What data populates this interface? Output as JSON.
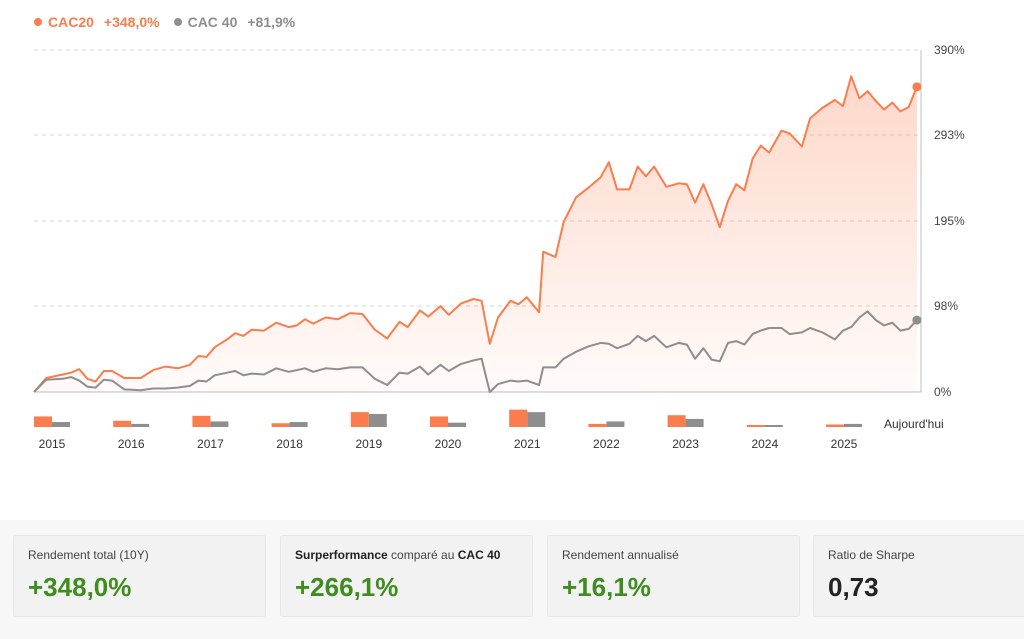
{
  "legend": [
    {
      "name": "CAC20",
      "value": "+348,0%",
      "color": "#fb7c4d"
    },
    {
      "name": "CAC 40",
      "value": "+81,9%",
      "color": "#8e8e8e"
    }
  ],
  "today_label": "Aujourd'hui",
  "stats": [
    {
      "label": "Rendement total (10Y)",
      "value": "+348,0%"
    },
    {
      "label_pre": "Surperformance",
      "label_mid": " comparé au ",
      "label_post": "CAC 40",
      "value": "+266,1%"
    },
    {
      "label": "Rendement annualisé",
      "value": "+16,1%"
    },
    {
      "label": "Ratio de Sharpe",
      "value": "0,73"
    }
  ],
  "chart_data": {
    "type": "line",
    "ylim": [
      0,
      390
    ],
    "y_ticks": [
      {
        "value": 0,
        "label": "0%"
      },
      {
        "value": 98,
        "label": "98%"
      },
      {
        "value": 195,
        "label": "195%"
      },
      {
        "value": 293,
        "label": "293%"
      },
      {
        "value": 390,
        "label": "390%"
      }
    ],
    "x_range": [
      2015,
      2025.8
    ],
    "x_tick_labels": [
      "2015",
      "2016",
      "2017",
      "2018",
      "2019",
      "2020",
      "2021",
      "2022",
      "2023",
      "2024",
      "2025"
    ],
    "grid": true,
    "series": [
      {
        "name": "CAC20",
        "color": "#fb7c4d",
        "end_value": 348,
        "points": [
          [
            2015.0,
            0
          ],
          [
            2015.15,
            16
          ],
          [
            2015.35,
            20
          ],
          [
            2015.45,
            22
          ],
          [
            2015.55,
            26
          ],
          [
            2015.65,
            15
          ],
          [
            2015.75,
            12
          ],
          [
            2015.85,
            24
          ],
          [
            2015.95,
            24
          ],
          [
            2016.1,
            16
          ],
          [
            2016.3,
            16
          ],
          [
            2016.45,
            25
          ],
          [
            2016.6,
            29
          ],
          [
            2016.75,
            27
          ],
          [
            2016.9,
            31
          ],
          [
            2017.0,
            41
          ],
          [
            2017.1,
            40
          ],
          [
            2017.2,
            51
          ],
          [
            2017.35,
            60
          ],
          [
            2017.45,
            67
          ],
          [
            2017.55,
            64
          ],
          [
            2017.65,
            71
          ],
          [
            2017.8,
            70
          ],
          [
            2017.95,
            79
          ],
          [
            2018.1,
            74
          ],
          [
            2018.2,
            76
          ],
          [
            2018.3,
            83
          ],
          [
            2018.4,
            78
          ],
          [
            2018.55,
            85
          ],
          [
            2018.7,
            83
          ],
          [
            2018.85,
            90
          ],
          [
            2019.0,
            89
          ],
          [
            2019.15,
            71
          ],
          [
            2019.3,
            61
          ],
          [
            2019.45,
            80
          ],
          [
            2019.55,
            74
          ],
          [
            2019.7,
            93
          ],
          [
            2019.8,
            86
          ],
          [
            2019.95,
            98
          ],
          [
            2020.05,
            88
          ],
          [
            2020.2,
            101
          ],
          [
            2020.35,
            106
          ],
          [
            2020.45,
            104
          ],
          [
            2020.55,
            55
          ],
          [
            2020.65,
            85
          ],
          [
            2020.8,
            104
          ],
          [
            2020.9,
            100
          ],
          [
            2021.0,
            108
          ],
          [
            2021.15,
            91
          ],
          [
            2021.2,
            160
          ],
          [
            2021.35,
            154
          ],
          [
            2021.45,
            194
          ],
          [
            2021.6,
            222
          ],
          [
            2021.75,
            233
          ],
          [
            2021.9,
            245
          ],
          [
            2022.0,
            262
          ],
          [
            2022.1,
            231
          ],
          [
            2022.25,
            231
          ],
          [
            2022.35,
            257
          ],
          [
            2022.45,
            246
          ],
          [
            2022.55,
            257
          ],
          [
            2022.7,
            234
          ],
          [
            2022.85,
            238
          ],
          [
            2022.95,
            237
          ],
          [
            2023.05,
            216
          ],
          [
            2023.15,
            237
          ],
          [
            2023.25,
            214
          ],
          [
            2023.35,
            188
          ],
          [
            2023.45,
            218
          ],
          [
            2023.55,
            237
          ],
          [
            2023.65,
            230
          ],
          [
            2023.75,
            266
          ],
          [
            2023.85,
            281
          ],
          [
            2023.95,
            273
          ],
          [
            2024.1,
            298
          ],
          [
            2024.2,
            295
          ],
          [
            2024.35,
            280
          ],
          [
            2024.45,
            312
          ],
          [
            2024.6,
            324
          ],
          [
            2024.75,
            333
          ],
          [
            2024.85,
            326
          ],
          [
            2024.95,
            360
          ],
          [
            2025.05,
            335
          ],
          [
            2025.15,
            343
          ],
          [
            2025.25,
            332
          ],
          [
            2025.35,
            322
          ],
          [
            2025.45,
            330
          ],
          [
            2025.55,
            320
          ],
          [
            2025.65,
            325
          ],
          [
            2025.75,
            348
          ]
        ]
      },
      {
        "name": "CAC 40",
        "color": "#8e8e8e",
        "end_value": 82,
        "points": [
          [
            2015.0,
            0
          ],
          [
            2015.15,
            14
          ],
          [
            2015.35,
            15
          ],
          [
            2015.45,
            17
          ],
          [
            2015.55,
            13
          ],
          [
            2015.65,
            6
          ],
          [
            2015.75,
            5
          ],
          [
            2015.85,
            14
          ],
          [
            2015.95,
            13
          ],
          [
            2016.1,
            3
          ],
          [
            2016.3,
            2
          ],
          [
            2016.45,
            4
          ],
          [
            2016.6,
            4
          ],
          [
            2016.75,
            5
          ],
          [
            2016.9,
            7
          ],
          [
            2017.0,
            13
          ],
          [
            2017.1,
            12
          ],
          [
            2017.2,
            19
          ],
          [
            2017.35,
            22
          ],
          [
            2017.45,
            24
          ],
          [
            2017.55,
            19
          ],
          [
            2017.65,
            21
          ],
          [
            2017.8,
            20
          ],
          [
            2017.95,
            27
          ],
          [
            2018.1,
            23
          ],
          [
            2018.2,
            25
          ],
          [
            2018.3,
            27
          ],
          [
            2018.4,
            23
          ],
          [
            2018.55,
            27
          ],
          [
            2018.7,
            26
          ],
          [
            2018.85,
            28
          ],
          [
            2019.0,
            28
          ],
          [
            2019.15,
            15
          ],
          [
            2019.3,
            8
          ],
          [
            2019.45,
            22
          ],
          [
            2019.55,
            21
          ],
          [
            2019.7,
            29
          ],
          [
            2019.8,
            20
          ],
          [
            2019.95,
            31
          ],
          [
            2020.05,
            24
          ],
          [
            2020.2,
            32
          ],
          [
            2020.35,
            36
          ],
          [
            2020.45,
            38
          ],
          [
            2020.55,
            0
          ],
          [
            2020.65,
            9
          ],
          [
            2020.8,
            13
          ],
          [
            2020.9,
            12
          ],
          [
            2021.0,
            13
          ],
          [
            2021.15,
            8
          ],
          [
            2021.2,
            28
          ],
          [
            2021.35,
            28
          ],
          [
            2021.45,
            38
          ],
          [
            2021.6,
            46
          ],
          [
            2021.75,
            52
          ],
          [
            2021.9,
            56
          ],
          [
            2022.0,
            55
          ],
          [
            2022.1,
            50
          ],
          [
            2022.25,
            55
          ],
          [
            2022.35,
            64
          ],
          [
            2022.45,
            58
          ],
          [
            2022.55,
            64
          ],
          [
            2022.7,
            51
          ],
          [
            2022.85,
            56
          ],
          [
            2022.95,
            54
          ],
          [
            2023.05,
            38
          ],
          [
            2023.15,
            50
          ],
          [
            2023.25,
            37
          ],
          [
            2023.35,
            35
          ],
          [
            2023.45,
            56
          ],
          [
            2023.55,
            58
          ],
          [
            2023.65,
            54
          ],
          [
            2023.75,
            66
          ],
          [
            2023.85,
            70
          ],
          [
            2023.95,
            73
          ],
          [
            2024.1,
            73
          ],
          [
            2024.2,
            66
          ],
          [
            2024.35,
            68
          ],
          [
            2024.45,
            73
          ],
          [
            2024.6,
            68
          ],
          [
            2024.75,
            60
          ],
          [
            2024.85,
            70
          ],
          [
            2024.95,
            74
          ],
          [
            2025.05,
            85
          ],
          [
            2025.15,
            92
          ],
          [
            2025.25,
            82
          ],
          [
            2025.35,
            76
          ],
          [
            2025.45,
            79
          ],
          [
            2025.55,
            70
          ],
          [
            2025.65,
            72
          ],
          [
            2025.75,
            82
          ]
        ]
      }
    ],
    "annual_bars": {
      "years": [
        "2015",
        "2016",
        "2017",
        "2018",
        "2019",
        "2020",
        "2021",
        "2022",
        "2023",
        "2024",
        "2025"
      ],
      "CAC20": [
        17,
        10,
        18,
        -6,
        24,
        17,
        28,
        -5,
        19,
        1,
        4
      ],
      "CAC 40": [
        8,
        5,
        9,
        -8,
        21,
        -7,
        24,
        -9,
        13,
        -2,
        5
      ]
    }
  }
}
